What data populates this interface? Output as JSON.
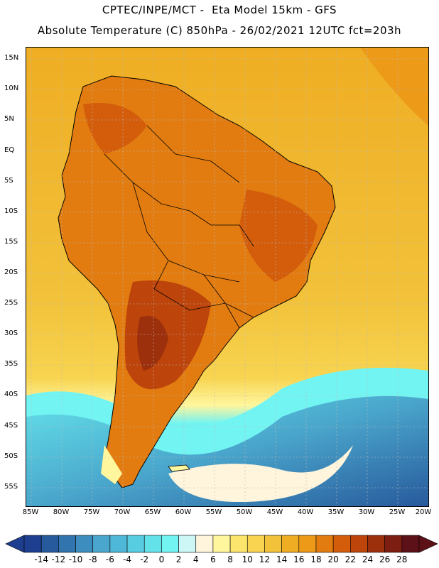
{
  "header": {
    "line1": "CPTEC/INPE/MCT -  Eta Model 15km - GFS",
    "line2": "Absolute Temperature (C) 850hPa - 26/02/2021 12UTC fct=203h"
  },
  "map": {
    "region": "South America",
    "lat_ticks": [
      "15N",
      "10N",
      "5N",
      "EQ",
      "5S",
      "10S",
      "15S",
      "20S",
      "25S",
      "30S",
      "35S",
      "40S",
      "45S",
      "50S",
      "55S"
    ],
    "lon_ticks": [
      "85W",
      "80W",
      "75W",
      "70W",
      "65W",
      "60W",
      "55W",
      "50W",
      "45W",
      "40W",
      "35W",
      "30W",
      "25W",
      "20W"
    ]
  },
  "legend": {
    "labels": [
      "-14",
      "-12",
      "-10",
      "-8",
      "-6",
      "-4",
      "-2",
      "0",
      "2",
      "4",
      "6",
      "8",
      "10",
      "12",
      "14",
      "16",
      "18",
      "20",
      "22",
      "24",
      "26",
      "28"
    ],
    "colors": [
      "#1e3f8f",
      "#275a9c",
      "#3274ad",
      "#3d8ebe",
      "#4aa6cc",
      "#4fb8d8",
      "#58cde2",
      "#63e2ea",
      "#72f4f2",
      "#cdf7f7",
      "#fff5dc",
      "#fff69e",
      "#fbe56d",
      "#f8d450",
      "#f2c23a",
      "#efad23",
      "#ec9a18",
      "#e27c10",
      "#d35d0b",
      "#bd440a",
      "#9c300c",
      "#7c1f12",
      "#5c1018"
    ]
  },
  "colors": {
    "warm_land": "#e27c10",
    "hot_core": "#9c300c",
    "ocean_warm": "#efad23",
    "ocean_mid": "#f2c23a",
    "cold_south": "#4aa6cc"
  }
}
